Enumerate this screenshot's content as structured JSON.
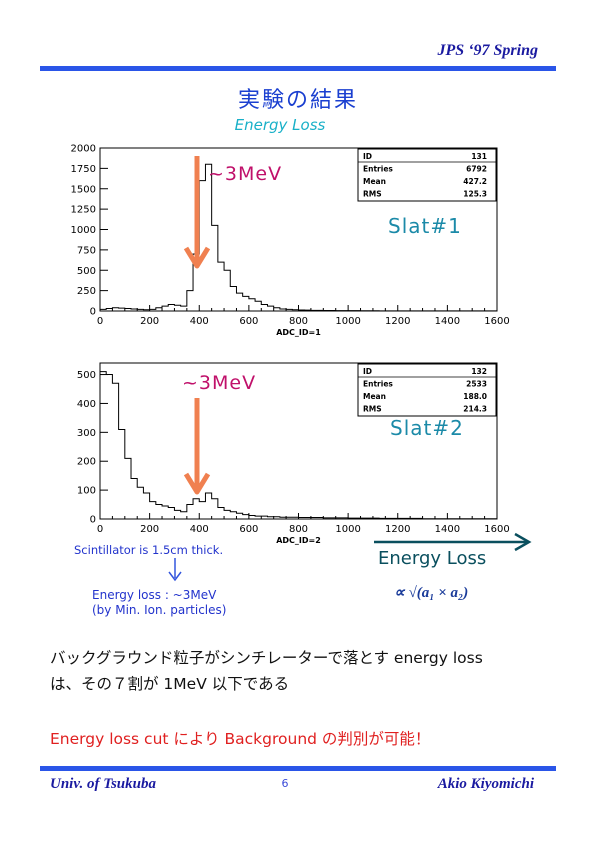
{
  "header": {
    "right": "JPS  ‘97  Spring"
  },
  "title": "実験の結果",
  "subtitle": "Energy Loss",
  "colors": {
    "rule": "#2a55e8",
    "arrow": "#f08050",
    "annotation": "#c0106a",
    "slat": "#1b8aa8",
    "conclusion": "#e02020"
  },
  "chart_data": [
    {
      "type": "histogram",
      "xlabel": "ADC_ID=1",
      "xlim": [
        0,
        1600
      ],
      "ylim": [
        0,
        2000
      ],
      "xticks": [
        "0",
        "200",
        "400",
        "600",
        "800",
        "1000",
        "1200",
        "1400",
        "1600"
      ],
      "yticks": [
        "0",
        "250",
        "500",
        "750",
        "1000",
        "1250",
        "1500",
        "1750",
        "2000"
      ],
      "bin_width": 25,
      "values": [
        20,
        30,
        40,
        35,
        30,
        25,
        20,
        15,
        20,
        40,
        60,
        80,
        70,
        60,
        250,
        700,
        1600,
        1800,
        1050,
        600,
        500,
        300,
        220,
        180,
        150,
        120,
        80,
        60,
        40,
        25,
        20,
        15,
        12,
        10,
        8,
        8,
        6,
        6,
        5,
        5,
        4,
        4,
        3,
        3,
        3,
        2,
        2,
        2,
        2,
        2,
        1,
        1,
        1,
        1,
        1,
        1,
        1,
        1,
        1,
        1,
        1,
        1,
        1,
        1
      ],
      "stats": {
        "ID": "131",
        "Entries": "6792",
        "Mean": "427.2",
        "RMS": "125.3"
      },
      "annotation": "~3MeV",
      "label": "Slat#1"
    },
    {
      "type": "histogram",
      "xlabel": "ADC_ID=2",
      "xlim": [
        0,
        1600
      ],
      "ylim": [
        0,
        540
      ],
      "xticks": [
        "0",
        "200",
        "400",
        "600",
        "800",
        "1000",
        "1200",
        "1400",
        "1600"
      ],
      "yticks": [
        "0",
        "100",
        "200",
        "300",
        "400",
        "500"
      ],
      "bin_width": 25,
      "values": [
        510,
        500,
        470,
        310,
        210,
        140,
        110,
        90,
        60,
        50,
        45,
        40,
        30,
        25,
        50,
        70,
        60,
        90,
        70,
        40,
        30,
        25,
        20,
        15,
        12,
        10,
        10,
        8,
        8,
        6,
        6,
        6,
        5,
        5,
        5,
        5,
        4,
        4,
        4,
        4,
        3,
        3,
        3,
        3,
        3,
        2,
        2,
        2,
        2,
        2,
        2,
        2,
        1,
        1,
        1,
        1,
        1,
        1,
        1,
        1,
        1,
        1,
        1,
        1
      ],
      "stats": {
        "ID": "132",
        "Entries": "2533",
        "Mean": "188.0",
        "RMS": "214.3"
      },
      "annotation": "~3MeV",
      "label": "Slat#2"
    }
  ],
  "notes": {
    "thickness": "Scintillator is 1.5cm thick.",
    "eloss_line1": "Energy loss : ~3MeV",
    "eloss_line2": "(by Min. Ion. particles)"
  },
  "energy_loss_label": "Energy Loss",
  "formula": "∝ √(a₁ × a₂)",
  "paragraph": {
    "line1": "バックグラウンド粒子がシンチレーターで落とす energy loss",
    "line2": "は、その７割が 1MeV 以下である"
  },
  "conclusion": "Energy loss cut により Background の判別が可能！",
  "footer": {
    "left": "Univ. of Tsukuba",
    "page": "6",
    "right": "Akio Kiyomichi"
  }
}
